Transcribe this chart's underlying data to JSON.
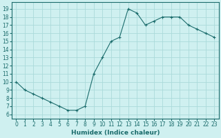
{
  "x": [
    0,
    1,
    2,
    3,
    4,
    5,
    6,
    7,
    8,
    9,
    10,
    11,
    12,
    13,
    14,
    15,
    16,
    17,
    18,
    19,
    20,
    21,
    22,
    23
  ],
  "y": [
    10,
    9,
    8.5,
    8,
    7.5,
    7,
    6.5,
    6.5,
    7,
    11,
    13,
    15,
    15.5,
    19,
    18.5,
    17,
    17.5,
    18,
    18,
    18,
    17,
    16.5,
    16,
    15.5
  ],
  "line_color": "#1a6b6b",
  "marker": "+",
  "bg_color": "#cff0f0",
  "grid_color": "#aadada",
  "xlabel": "Humidex (Indice chaleur)",
  "xlim": [
    -0.5,
    23.5
  ],
  "ylim": [
    5.5,
    19.8
  ],
  "yticks": [
    6,
    7,
    8,
    9,
    10,
    11,
    12,
    13,
    14,
    15,
    16,
    17,
    18,
    19
  ],
  "xticks": [
    0,
    1,
    2,
    3,
    4,
    5,
    6,
    7,
    8,
    9,
    10,
    11,
    12,
    13,
    14,
    15,
    16,
    17,
    18,
    19,
    20,
    21,
    22,
    23
  ],
  "xtick_labels": [
    "0",
    "1",
    "2",
    "3",
    "4",
    "5",
    "6",
    "7",
    "8",
    "9",
    "10",
    "11",
    "12",
    "13",
    "14",
    "15",
    "16",
    "17",
    "18",
    "19",
    "20",
    "21",
    "22",
    "23"
  ],
  "axis_fontsize": 5.5,
  "label_fontsize": 6.5
}
